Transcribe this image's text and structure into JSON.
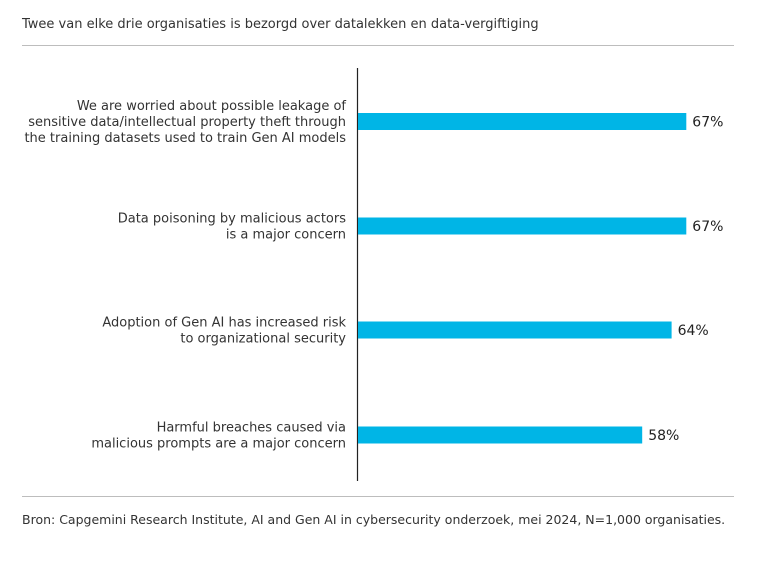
{
  "chart_data": {
    "type": "bar",
    "orientation": "horizontal",
    "title": "Twee van elke drie organisaties is bezorgd over datalekken en data-vergiftiging",
    "categories": [
      [
        "We are worried about possible leakage of",
        "sensitive data/intellectual property theft through",
        "the training datasets used to train Gen AI models"
      ],
      [
        "Data poisoning by malicious actors",
        "is a major concern"
      ],
      [
        "Adoption of Gen AI has increased risk",
        "to organizational security"
      ],
      [
        "Harmful breaches caused via",
        "malicious prompts are a major concern"
      ]
    ],
    "values": [
      67,
      67,
      64,
      58
    ],
    "value_labels": [
      "67%",
      "67%",
      "64%",
      "58%"
    ],
    "unit": "%",
    "xlim": [
      0,
      100
    ],
    "bar_color": "#00B5E6",
    "source": "Bron: Capgemini Research Institute, AI and Gen AI in cybersecurity onderzoek, mei 2024, N=1,000 organisaties."
  }
}
